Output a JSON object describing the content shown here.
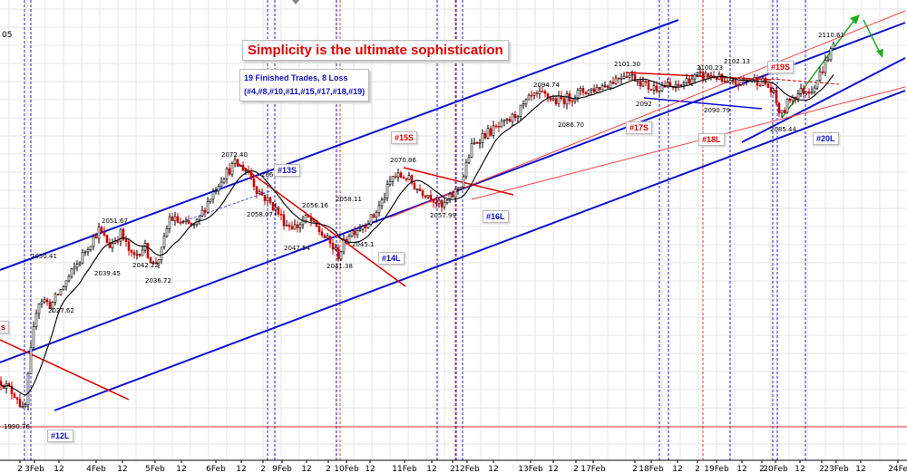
{
  "chart_data": {
    "type": "candlestick",
    "title": "Simplicity is the ultimate sophistication",
    "x_ticks": [
      {
        "label": "2",
        "px": 22
      },
      {
        "label": "3Feb",
        "px": 38
      },
      {
        "label": "12",
        "px": 65
      },
      {
        "label": "4Feb",
        "px": 106
      },
      {
        "label": "12",
        "px": 135
      },
      {
        "label": "5Feb",
        "px": 171
      },
      {
        "label": "12",
        "px": 200
      },
      {
        "label": "6Feb",
        "px": 238
      },
      {
        "label": "12",
        "px": 266
      },
      {
        "label": "2",
        "px": 290
      },
      {
        "label": "9Feb",
        "px": 311
      },
      {
        "label": "12",
        "px": 338
      },
      {
        "label": "2",
        "px": 362
      },
      {
        "label": "10Feb",
        "px": 382
      },
      {
        "label": "12",
        "px": 408
      },
      {
        "label": "11Feb",
        "px": 446
      },
      {
        "label": "12",
        "px": 476
      },
      {
        "label": "2",
        "px": 499
      },
      {
        "label": "12Feb",
        "px": 515
      },
      {
        "label": "12",
        "px": 544
      },
      {
        "label": "13Feb",
        "px": 585
      },
      {
        "label": "12",
        "px": 610
      },
      {
        "label": "2",
        "px": 635
      },
      {
        "label": "17Feb",
        "px": 654
      },
      {
        "label": "2",
        "px": 700
      },
      {
        "label": "18Feb",
        "px": 718
      },
      {
        "label": "12",
        "px": 747
      },
      {
        "label": "2",
        "px": 769
      },
      {
        "label": "19Feb",
        "px": 790
      },
      {
        "label": "12",
        "px": 818
      },
      {
        "label": "2",
        "px": 840
      },
      {
        "label": "20Feb",
        "px": 855
      },
      {
        "label": "12",
        "px": 882
      },
      {
        "label": "2",
        "px": 906
      },
      {
        "label": "23Feb",
        "px": 922
      },
      {
        "label": "12",
        "px": 949
      },
      {
        "label": "24Fe",
        "px": 990
      }
    ],
    "x_tick_labels": [
      "2",
      "3Feb",
      "12",
      "4Feb",
      "12",
      "5Feb",
      "12",
      "6Feb",
      "12",
      "2",
      "9Feb",
      "12",
      "2",
      "10Feb",
      "12",
      "11Feb",
      "12",
      "2",
      "12Feb",
      "12",
      "13Feb",
      "12",
      "2",
      "17Feb",
      "2",
      "18Feb",
      "12",
      "2",
      "19Feb",
      "12",
      "2",
      "20Feb",
      "12",
      "2",
      "23Feb",
      "12",
      "24Fe"
    ],
    "y_tick_partial": "05",
    "price_labels": [
      "2030.41",
      "2027.62",
      "2051.67",
      "2039.45",
      "2042.22",
      "2036.72",
      "2072.40",
      "2058.07",
      "2065.4",
      "2056.16",
      "2047.54",
      "2058.11",
      "2041.38",
      "2045.1",
      "2070.86",
      "2057.99",
      "2094.74",
      "2086.70",
      "2101.30",
      "2092",
      "2100.23",
      "2102.13",
      "2090.79",
      "2085.44",
      "2110.61",
      "1990.76"
    ],
    "trade_labels": [
      "#12L",
      "#13S",
      "#14L",
      "#15S",
      "#16L",
      "#17S",
      "#18L",
      "#19S",
      "#20L"
    ],
    "annotations": {
      "headline": "Simplicity is the ultimate sophistication",
      "trades_line1": "19 Finished Trades, 8 Loss",
      "trades_line2": "(#4,#8,#10,#11,#15,#17,#18,#19)",
      "partial_left_tag": "s"
    },
    "grid": true,
    "colors": {
      "up": "#000000",
      "down": "#cc0000",
      "channel": "#1010d0",
      "red_line": "#e00000",
      "green_arrow": "#22aa22"
    }
  }
}
